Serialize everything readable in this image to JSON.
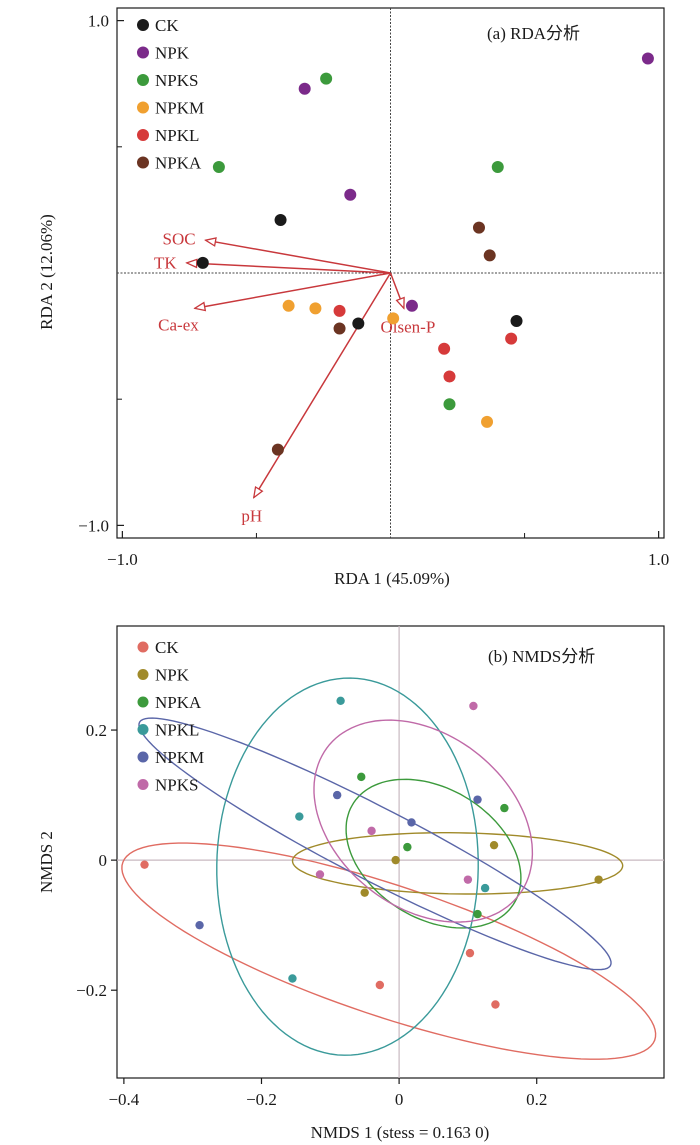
{
  "colors": {
    "axis": "#1a1a1a",
    "arrow": "#c8383c",
    "refline_a": "#444444",
    "refline_b": "#c8b8c0"
  },
  "chart_data": [
    {
      "type": "scatter",
      "title": "(a) RDA分析",
      "xlabel": "RDA 1 (45.09%)",
      "ylabel": "RDA 2 (12.06%)",
      "xlim": [
        -1.02,
        1.02
      ],
      "ylim": [
        -1.05,
        1.05
      ],
      "xticks": [
        -1.0,
        1.0
      ],
      "xtick_labels": [
        "−1.0",
        "1.0"
      ],
      "minor_xticks": [
        -0.5,
        0.5
      ],
      "yticks": [
        -1.0,
        1.0
      ],
      "ytick_labels": [
        "−1.0",
        "1.0"
      ],
      "minor_yticks": [
        -0.5,
        0.5
      ],
      "legend_position": "top-left",
      "series": [
        {
          "name": "CK",
          "color": "#1a1a1a",
          "points": [
            [
              -0.41,
              0.21
            ],
            [
              -0.7,
              0.04
            ],
            [
              -0.12,
              -0.2
            ],
            [
              0.47,
              -0.19
            ]
          ]
        },
        {
          "name": "NPK",
          "color": "#7b2a8a",
          "points": [
            [
              -0.32,
              0.73
            ],
            [
              -0.15,
              0.31
            ],
            [
              0.08,
              -0.13
            ],
            [
              0.96,
              0.85
            ]
          ]
        },
        {
          "name": "NPKS",
          "color": "#3c9a3c",
          "points": [
            [
              -0.24,
              0.77
            ],
            [
              -0.64,
              0.42
            ],
            [
              0.4,
              0.42
            ],
            [
              0.22,
              -0.52
            ]
          ]
        },
        {
          "name": "NPKM",
          "color": "#f0a030",
          "points": [
            [
              -0.38,
              -0.13
            ],
            [
              -0.28,
              -0.14
            ],
            [
              0.01,
              -0.18
            ],
            [
              0.36,
              -0.59
            ]
          ]
        },
        {
          "name": "NPKL",
          "color": "#d63a3a",
          "points": [
            [
              -0.19,
              -0.15
            ],
            [
              0.2,
              -0.3
            ],
            [
              0.22,
              -0.41
            ],
            [
              0.45,
              -0.26
            ]
          ]
        },
        {
          "name": "NPKA",
          "color": "#6b3422",
          "points": [
            [
              -0.19,
              -0.22
            ],
            [
              0.33,
              0.18
            ],
            [
              0.37,
              0.07
            ],
            [
              -0.42,
              -0.7
            ]
          ]
        }
      ],
      "vectors": [
        {
          "label": "SOC",
          "x": -0.69,
          "y": 0.13
        },
        {
          "label": "TK",
          "x": -0.76,
          "y": 0.04
        },
        {
          "label": "Ca-ex",
          "x": -0.73,
          "y": -0.14
        },
        {
          "label": "Olsen-P",
          "x": 0.05,
          "y": -0.14
        },
        {
          "label": "pH",
          "x": -0.51,
          "y": -0.89
        }
      ]
    },
    {
      "type": "scatter",
      "title": "(b) NMDS分析",
      "xlabel": "NMDS 1  (stess = 0.163 0)",
      "ylabel": "NMDS 2",
      "xlim": [
        -0.41,
        0.385
      ],
      "ylim": [
        -0.335,
        0.36
      ],
      "xticks": [
        -0.4,
        -0.2,
        0,
        0.2
      ],
      "xtick_labels": [
        "−0.4",
        "−0.2",
        "0",
        "0.2"
      ],
      "yticks": [
        -0.2,
        0,
        0.2
      ],
      "ytick_labels": [
        "−0.2",
        "0",
        "0.2"
      ],
      "legend_position": "top-left",
      "series": [
        {
          "name": "CK",
          "color": "#e06c62",
          "points": [
            [
              -0.37,
              -0.007
            ],
            [
              -0.028,
              -0.192
            ],
            [
              0.103,
              -0.143
            ],
            [
              0.14,
              -0.222
            ]
          ],
          "ellipse": {
            "cx": -0.015,
            "cy": -0.14,
            "rx": 0.41,
            "ry": 0.1,
            "angle": -19.5
          }
        },
        {
          "name": "NPK",
          "color": "#a08a2a",
          "points": [
            [
              -0.05,
              -0.05
            ],
            [
              -0.005,
              0.0
            ],
            [
              0.138,
              0.023
            ],
            [
              0.29,
              -0.03
            ]
          ],
          "ellipse": {
            "cx": 0.085,
            "cy": -0.005,
            "rx": 0.24,
            "ry": 0.047,
            "angle": -0.9
          }
        },
        {
          "name": "NPKA",
          "color": "#3c9a3c",
          "points": [
            [
              -0.055,
              0.128
            ],
            [
              0.012,
              0.02
            ],
            [
              0.114,
              -0.083
            ],
            [
              0.153,
              0.08
            ]
          ],
          "ellipse": {
            "cx": 0.05,
            "cy": 0.01,
            "rx": 0.14,
            "ry": 0.098,
            "angle": -36
          }
        },
        {
          "name": "NPKL",
          "color": "#3a9a9a",
          "points": [
            [
              -0.085,
              0.245
            ],
            [
              -0.145,
              0.067
            ],
            [
              -0.155,
              -0.182
            ],
            [
              0.125,
              -0.043
            ]
          ],
          "ellipse": {
            "cx": -0.075,
            "cy": -0.01,
            "rx": 0.19,
            "ry": 0.29,
            "angle": -0.9
          }
        },
        {
          "name": "NPKM",
          "color": "#5a66a8",
          "points": [
            [
              -0.29,
              -0.1
            ],
            [
              -0.09,
              0.1
            ],
            [
              0.018,
              0.058
            ],
            [
              0.114,
              0.093
            ]
          ],
          "ellipse": {
            "cx": -0.035,
            "cy": 0.025,
            "rx": 0.39,
            "ry": 0.055,
            "angle": -28.7
          }
        },
        {
          "name": "NPKS",
          "color": "#c06aa8",
          "points": [
            [
              -0.115,
              -0.022
            ],
            [
              -0.04,
              0.045
            ],
            [
              0.1,
              -0.03
            ],
            [
              0.108,
              0.237
            ]
          ],
          "ellipse": {
            "cx": 0.035,
            "cy": 0.06,
            "rx": 0.18,
            "ry": 0.13,
            "angle": -43
          }
        }
      ]
    }
  ]
}
